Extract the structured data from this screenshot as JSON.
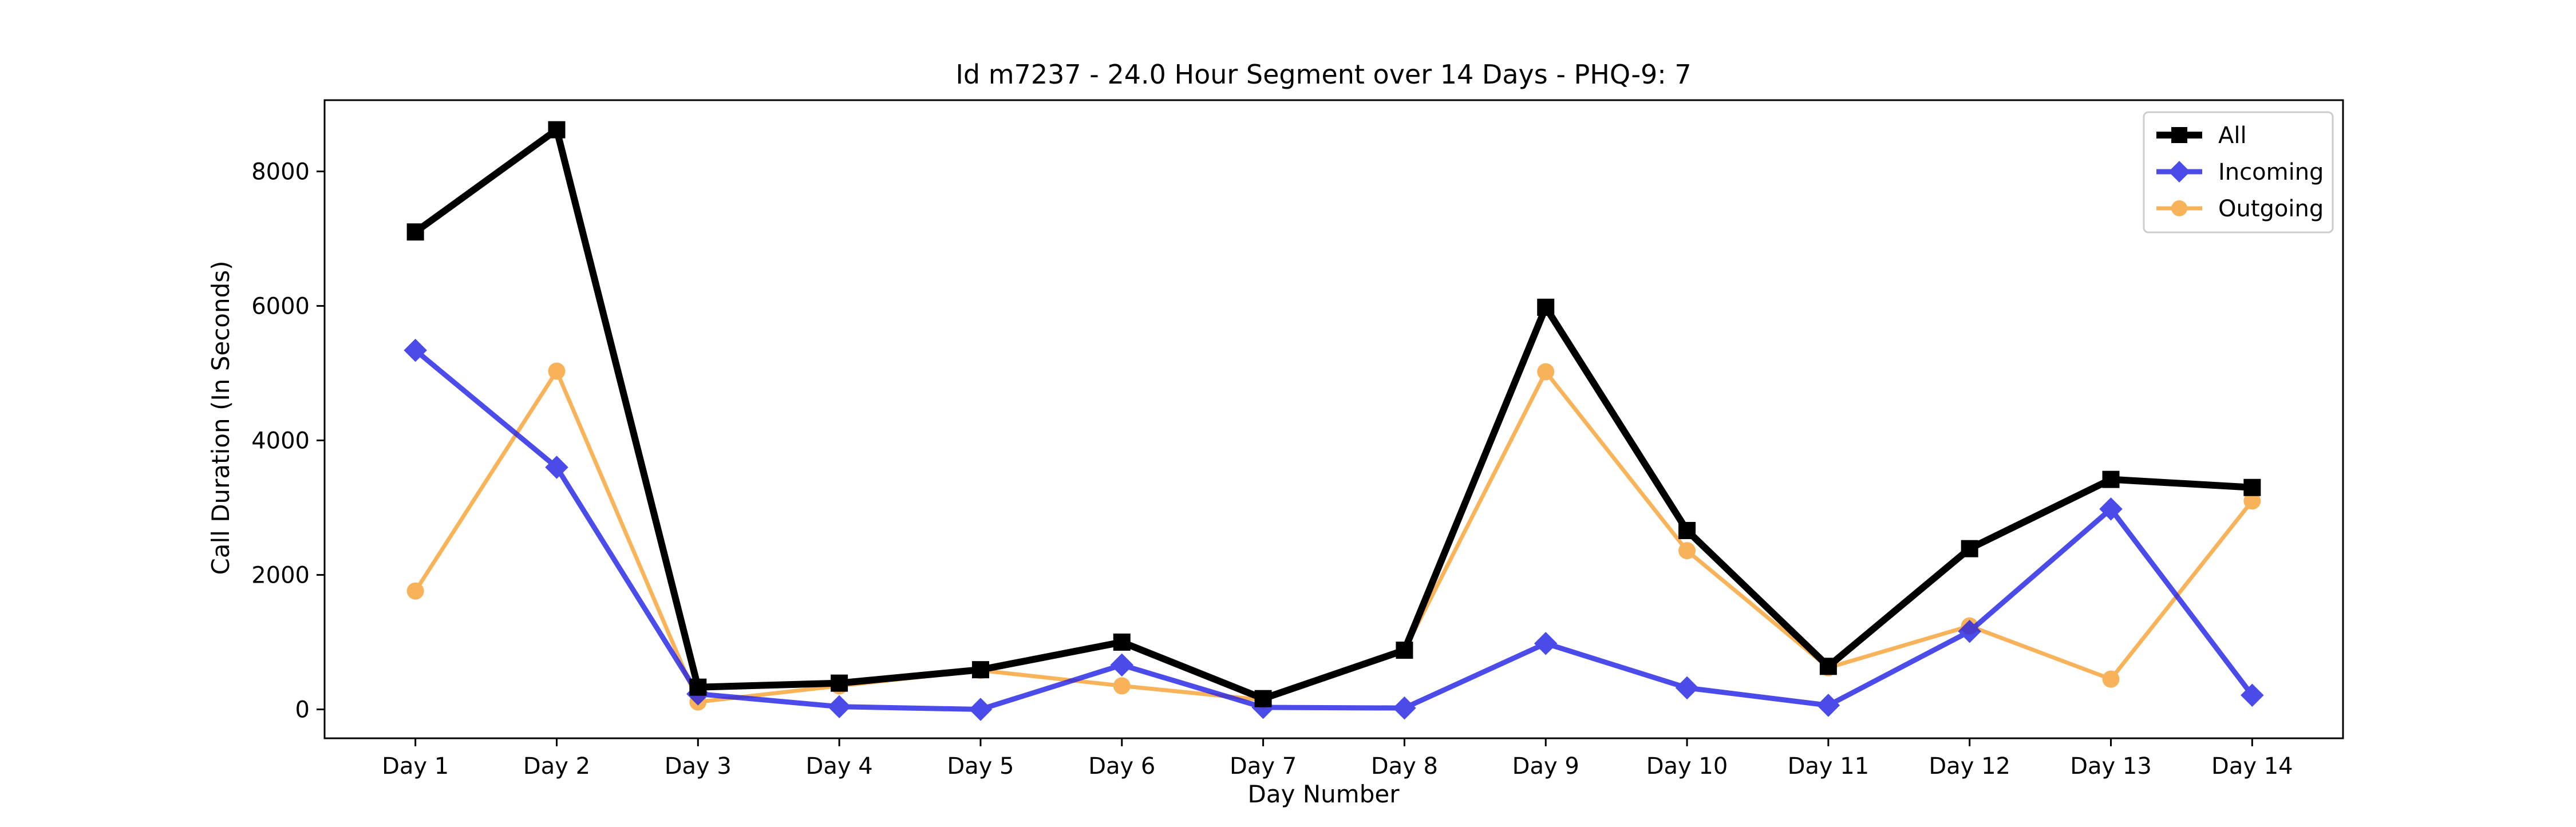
{
  "chart_data": {
    "type": "line",
    "title": "Id m7237 - 24.0 Hour Segment over 14 Days - PHQ-9: 7",
    "xlabel": "Day Number",
    "ylabel": "Call Duration (In Seconds)",
    "categories": [
      "Day 1",
      "Day 2",
      "Day 3",
      "Day 4",
      "Day 5",
      "Day 6",
      "Day 7",
      "Day 8",
      "Day 9",
      "Day 10",
      "Day 11",
      "Day 12",
      "Day 13",
      "Day 14"
    ],
    "yticks": [
      0,
      2000,
      4000,
      6000,
      8000
    ],
    "ylim": [
      -430,
      9060
    ],
    "grid": false,
    "legend_position": "top-right",
    "series": [
      {
        "name": "All",
        "color": "#000000",
        "marker": "square",
        "values": [
          7100,
          8620,
          330,
          390,
          590,
          1000,
          160,
          880,
          5980,
          2660,
          640,
          2390,
          3420,
          3300
        ]
      },
      {
        "name": "Incoming",
        "color": "#1f1fe6",
        "marker": "diamond",
        "values": [
          5340,
          3600,
          230,
          40,
          0,
          660,
          30,
          20,
          980,
          320,
          60,
          1160,
          2980,
          210
        ]
      },
      {
        "name": "Outgoing",
        "color": "#f7a030",
        "marker": "circle",
        "values": [
          1760,
          5030,
          110,
          350,
          580,
          350,
          140,
          880,
          5020,
          2360,
          620,
          1240,
          450,
          3100
        ]
      }
    ]
  }
}
